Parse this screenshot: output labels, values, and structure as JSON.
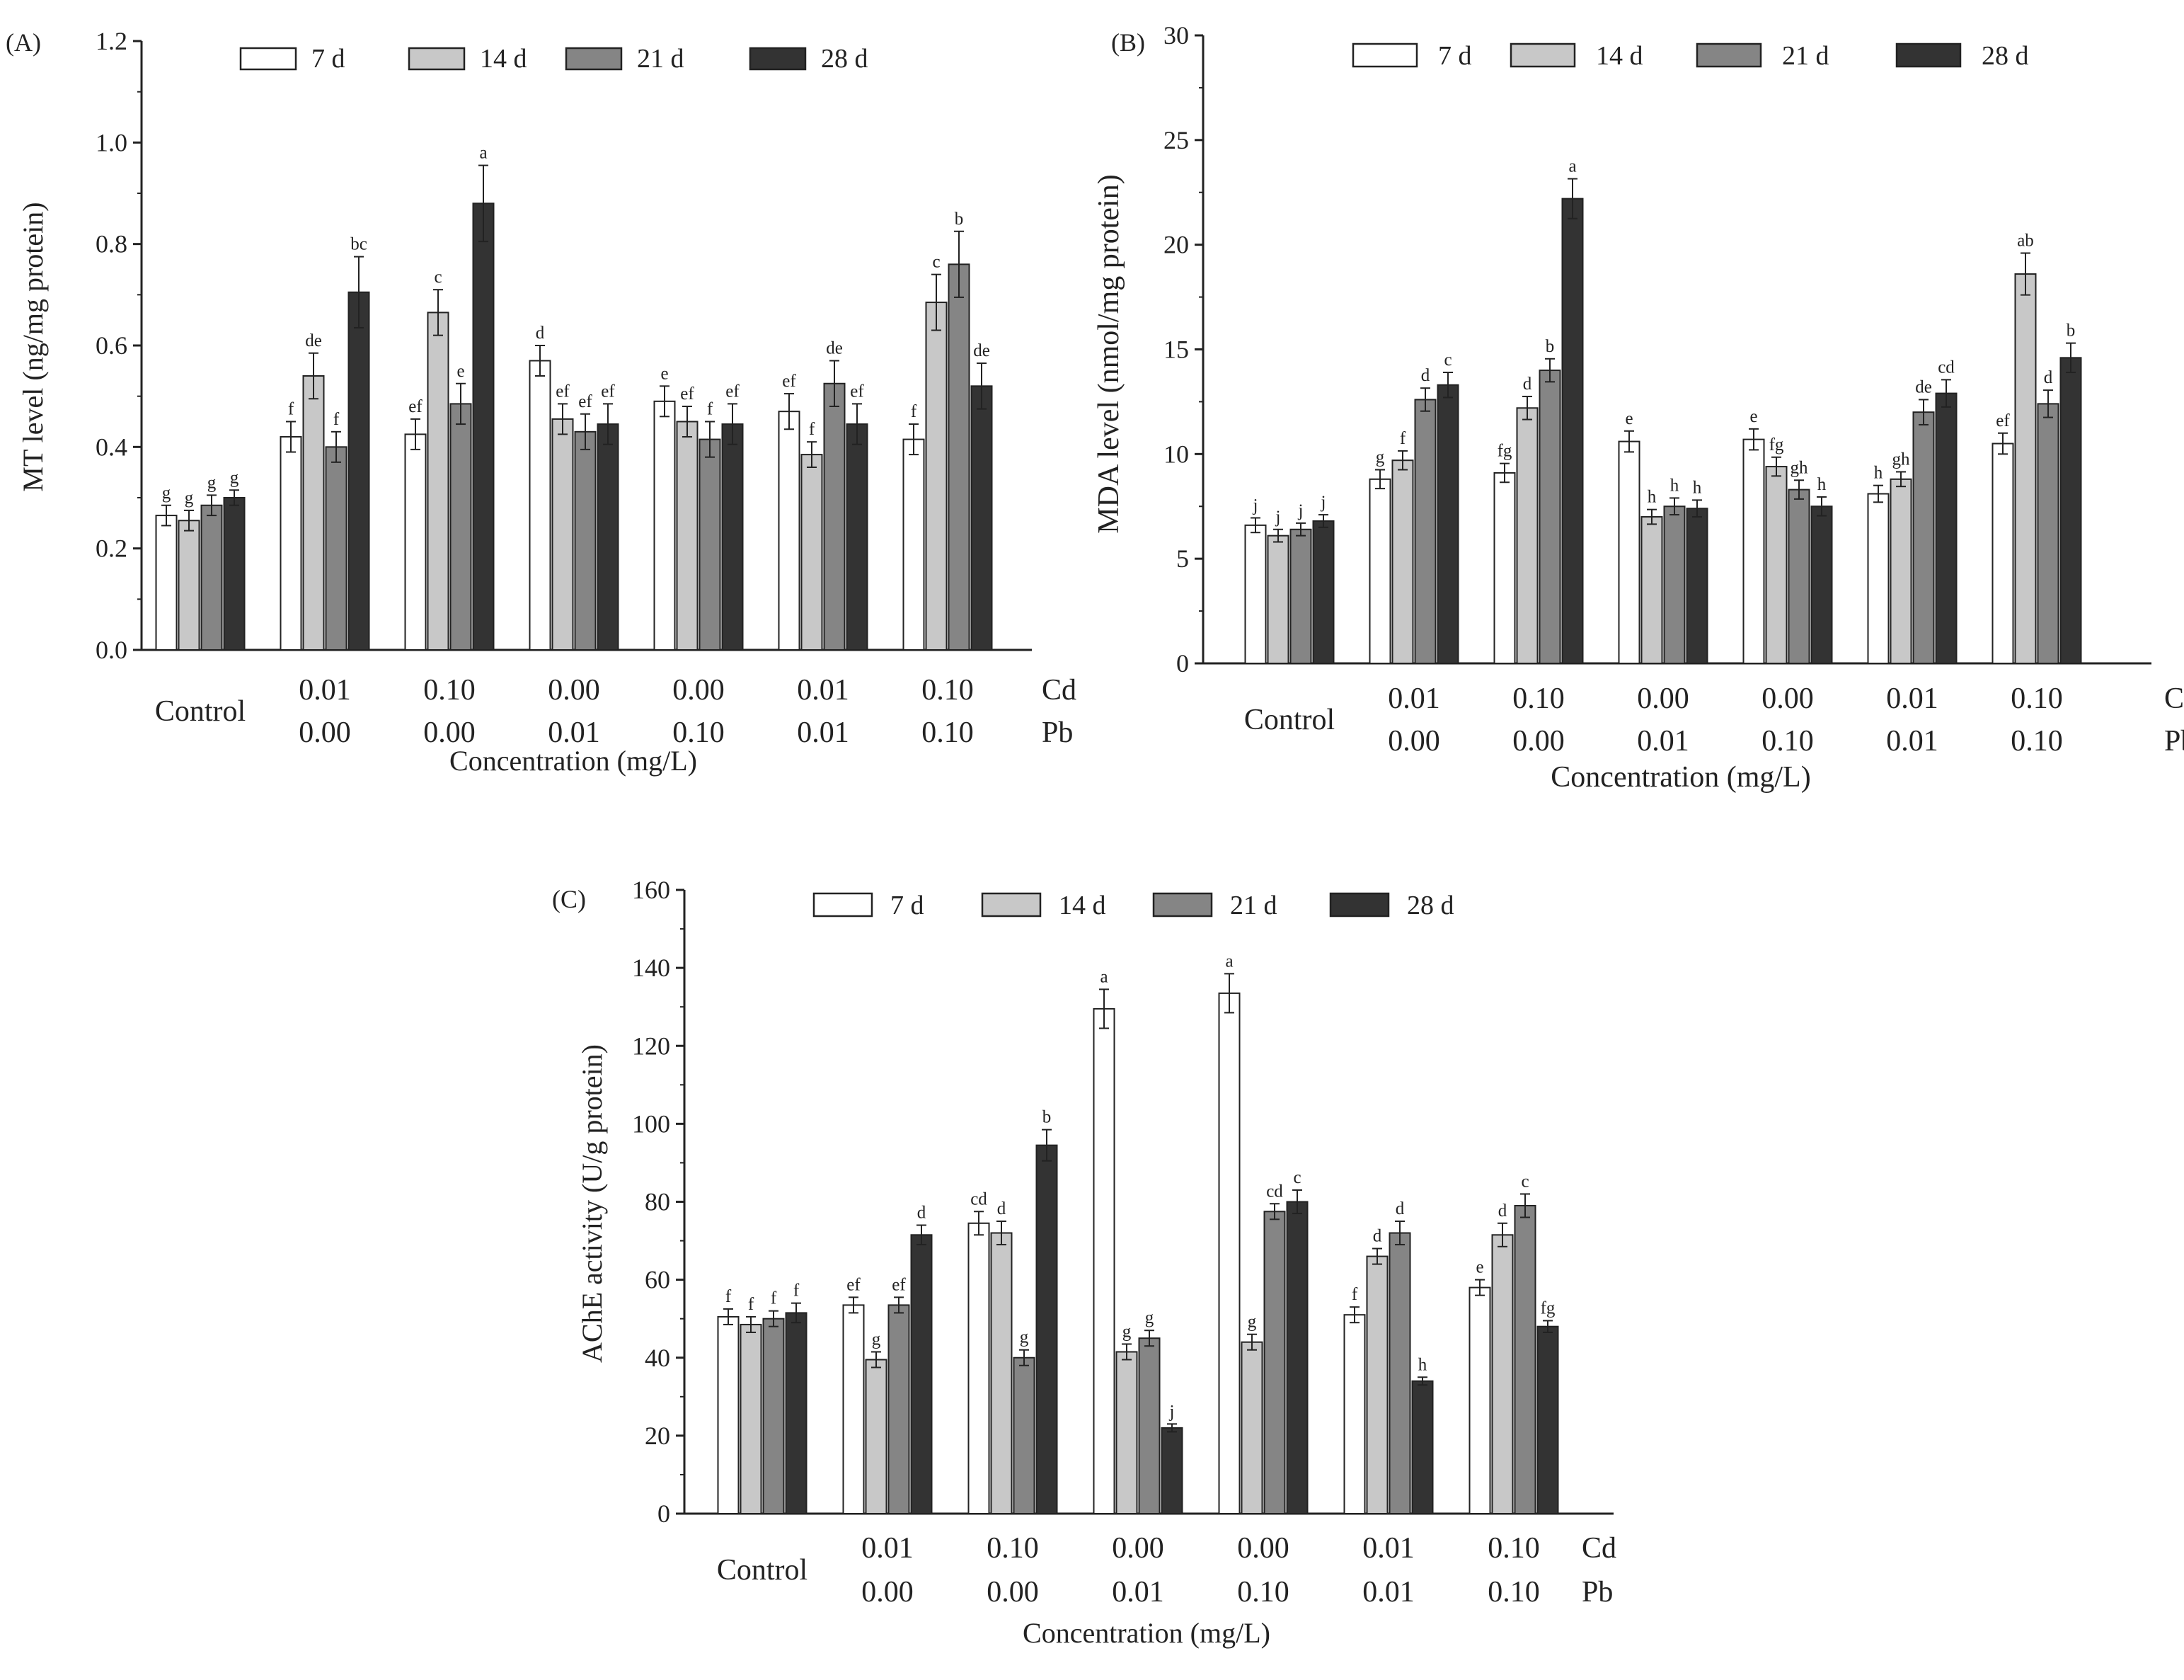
{
  "figure": {
    "legend_labels": [
      "7 d",
      "14 d",
      "21 d",
      "28 d"
    ],
    "series_colors": [
      "#ffffff",
      "#c8c8c8",
      "#858585",
      "#333333"
    ],
    "cd_label": "Cd",
    "pb_label": "Pb"
  },
  "chart_data": [
    {
      "type": "bar",
      "panel_label": "(A)",
      "ylabel": "MT level (ng/mg protein)",
      "xlabel": "Concentration (mg/L)",
      "ylim": [
        0,
        1.2
      ],
      "yticks": [
        0.0,
        0.2,
        0.4,
        0.6,
        0.8,
        1.0,
        1.2
      ],
      "ytick_labels": [
        "0.0",
        "0.2",
        "0.4",
        "0.6",
        "0.8",
        "1.0",
        "1.2"
      ],
      "categories": [
        {
          "top": "Control",
          "bottom": ""
        },
        {
          "top": "0.01",
          "bottom": "0.00"
        },
        {
          "top": "0.10",
          "bottom": "0.00"
        },
        {
          "top": "0.00",
          "bottom": "0.01"
        },
        {
          "top": "0.00",
          "bottom": "0.10"
        },
        {
          "top": "0.01",
          "bottom": "0.01"
        },
        {
          "top": "0.10",
          "bottom": "0.10"
        }
      ],
      "series": [
        {
          "name": "7 d",
          "values": [
            0.265,
            0.42,
            0.425,
            0.57,
            0.49,
            0.47,
            0.415
          ],
          "errors": [
            0.02,
            0.03,
            0.03,
            0.03,
            0.03,
            0.035,
            0.03
          ],
          "letters": [
            "g",
            "f",
            "ef",
            "d",
            "e",
            "ef",
            "f"
          ]
        },
        {
          "name": "14 d",
          "values": [
            0.255,
            0.54,
            0.665,
            0.455,
            0.45,
            0.385,
            0.685
          ],
          "errors": [
            0.02,
            0.045,
            0.045,
            0.03,
            0.03,
            0.025,
            0.055
          ],
          "letters": [
            "g",
            "de",
            "c",
            "ef",
            "ef",
            "f",
            "c"
          ]
        },
        {
          "name": "21 d",
          "values": [
            0.285,
            0.4,
            0.485,
            0.43,
            0.415,
            0.525,
            0.76
          ],
          "errors": [
            0.02,
            0.03,
            0.04,
            0.035,
            0.035,
            0.045,
            0.065
          ],
          "letters": [
            "g",
            "f",
            "e",
            "ef",
            "f",
            "de",
            "b"
          ]
        },
        {
          "name": "28 d",
          "values": [
            0.3,
            0.705,
            0.88,
            0.445,
            0.445,
            0.445,
            0.52
          ],
          "errors": [
            0.015,
            0.07,
            0.075,
            0.04,
            0.04,
            0.04,
            0.045
          ],
          "letters": [
            "g",
            "bc",
            "a",
            "ef",
            "ef",
            "ef",
            "de"
          ]
        }
      ]
    },
    {
      "type": "bar",
      "panel_label": "(B)",
      "ylabel": "MDA level (nmol/mg protein)",
      "xlabel": "Concentration (mg/L)",
      "ylim": [
        0,
        30
      ],
      "yticks": [
        0,
        5,
        10,
        15,
        20,
        25,
        30
      ],
      "ytick_labels": [
        "0",
        "5",
        "10",
        "15",
        "20",
        "25",
        "30"
      ],
      "categories": [
        {
          "top": "Control",
          "bottom": ""
        },
        {
          "top": "0.01",
          "bottom": "0.00"
        },
        {
          "top": "0.10",
          "bottom": "0.00"
        },
        {
          "top": "0.00",
          "bottom": "0.01"
        },
        {
          "top": "0.00",
          "bottom": "0.10"
        },
        {
          "top": "0.01",
          "bottom": "0.01"
        },
        {
          "top": "0.10",
          "bottom": "0.10"
        }
      ],
      "series": [
        {
          "name": "7 d",
          "values": [
            6.6,
            8.8,
            9.1,
            10.6,
            10.7,
            8.1,
            10.5
          ],
          "errors": [
            0.35,
            0.45,
            0.45,
            0.5,
            0.5,
            0.4,
            0.5
          ],
          "letters": [
            "j",
            "g",
            "fg",
            "e",
            "e",
            "h",
            "ef"
          ]
        },
        {
          "name": "14 d",
          "values": [
            6.1,
            9.7,
            12.2,
            7.0,
            9.4,
            8.8,
            18.6
          ],
          "errors": [
            0.3,
            0.45,
            0.55,
            0.35,
            0.45,
            0.35,
            1.0
          ],
          "letters": [
            "j",
            "f",
            "d",
            "h",
            "fg",
            "gh",
            "ab"
          ]
        },
        {
          "name": "21 d",
          "values": [
            6.4,
            12.6,
            14.0,
            7.5,
            8.3,
            12.0,
            12.4
          ],
          "errors": [
            0.3,
            0.55,
            0.55,
            0.4,
            0.45,
            0.6,
            0.65
          ],
          "letters": [
            "j",
            "d",
            "b",
            "h",
            "gh",
            "de",
            "d"
          ]
        },
        {
          "name": "28 d",
          "values": [
            6.8,
            13.3,
            22.2,
            7.4,
            7.5,
            12.9,
            14.6
          ],
          "errors": [
            0.3,
            0.6,
            0.95,
            0.4,
            0.45,
            0.65,
            0.7
          ],
          "letters": [
            "j",
            "c",
            "a",
            "h",
            "h",
            "cd",
            "b"
          ]
        }
      ]
    },
    {
      "type": "bar",
      "panel_label": "(C)",
      "ylabel": "AChE activity (U/g protein)",
      "xlabel": "Concentration (mg/L)",
      "ylim": [
        0,
        160
      ],
      "yticks": [
        0,
        20,
        40,
        60,
        80,
        100,
        120,
        140,
        160
      ],
      "ytick_labels": [
        "0",
        "20",
        "40",
        "60",
        "80",
        "100",
        "120",
        "140",
        "160"
      ],
      "categories": [
        {
          "top": "Control",
          "bottom": ""
        },
        {
          "top": "0.01",
          "bottom": "0.00"
        },
        {
          "top": "0.10",
          "bottom": "0.00"
        },
        {
          "top": "0.00",
          "bottom": "0.01"
        },
        {
          "top": "0.00",
          "bottom": "0.10"
        },
        {
          "top": "0.01",
          "bottom": "0.01"
        },
        {
          "top": "0.10",
          "bottom": "0.10"
        }
      ],
      "series": [
        {
          "name": "7 d",
          "values": [
            50.5,
            53.5,
            74.5,
            129.5,
            133.5,
            51.0,
            58.0
          ],
          "errors": [
            2.0,
            2.0,
            3.0,
            5.0,
            5.0,
            2.0,
            2.0
          ],
          "letters": [
            "f",
            "ef",
            "cd",
            "a",
            "a",
            "f",
            "e"
          ]
        },
        {
          "name": "14 d",
          "values": [
            48.5,
            39.5,
            72.0,
            41.5,
            44.0,
            66.0,
            71.5
          ],
          "errors": [
            2.0,
            2.0,
            3.0,
            2.0,
            2.0,
            2.0,
            3.0
          ],
          "letters": [
            "f",
            "g",
            "d",
            "g",
            "g",
            "d",
            "d"
          ]
        },
        {
          "name": "21 d",
          "values": [
            50.0,
            53.5,
            40.0,
            45.0,
            77.5,
            72.0,
            79.0
          ],
          "errors": [
            2.0,
            2.0,
            2.0,
            2.0,
            2.0,
            3.0,
            3.0
          ],
          "letters": [
            "f",
            "ef",
            "g",
            "g",
            "cd",
            "d",
            "c"
          ]
        },
        {
          "name": "28 d",
          "values": [
            51.5,
            71.5,
            94.5,
            22.0,
            80.0,
            34.0,
            48.0
          ],
          "errors": [
            2.5,
            2.5,
            4.0,
            1.0,
            3.0,
            1.0,
            1.5
          ],
          "letters": [
            "f",
            "d",
            "b",
            "j",
            "c",
            "h",
            "fg"
          ]
        }
      ]
    }
  ]
}
